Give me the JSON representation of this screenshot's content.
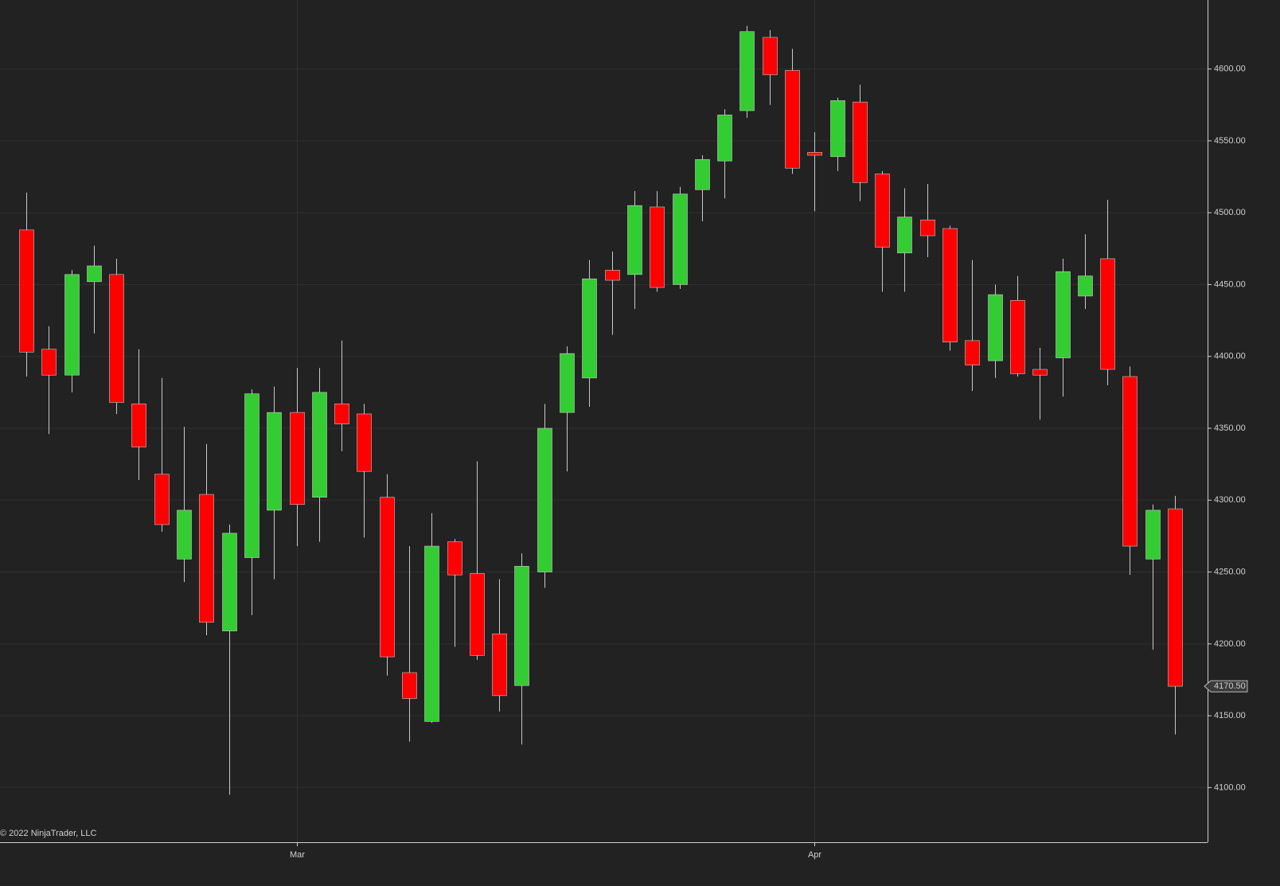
{
  "chart_data": {
    "type": "candlestick",
    "watermark": "© 2022 NinjaTrader, LLC",
    "categories": [
      null,
      null,
      null,
      null,
      null,
      null,
      null,
      null,
      null,
      null,
      null,
      null,
      "Mar",
      null,
      null,
      null,
      null,
      null,
      null,
      null,
      null,
      null,
      null,
      null,
      null,
      null,
      null,
      null,
      null,
      null,
      null,
      null,
      null,
      null,
      null,
      "Apr",
      null,
      null,
      null,
      null,
      null,
      null,
      null,
      null,
      null,
      null,
      null,
      null,
      null,
      null,
      null,
      null
    ],
    "open": [
      4488,
      4405,
      4387,
      4452,
      4457,
      4367,
      4318,
      4259,
      4304,
      4209,
      4260,
      4293,
      4361,
      4302,
      4367,
      4360,
      4302,
      4180,
      4146,
      4271,
      4249,
      4207,
      4171,
      4250,
      4361,
      4385,
      4460,
      4457,
      4504,
      4450,
      4516,
      4536,
      4571,
      4622,
      4599,
      4542,
      4539,
      4577,
      4527,
      4472,
      4495,
      4489,
      4411,
      4397,
      4439,
      4391,
      4399,
      4442,
      4468,
      4386,
      4259,
      4294
    ],
    "high": [
      4514,
      4421,
      4460,
      4477,
      4468,
      4405,
      4385,
      4351,
      4339,
      4283,
      4377,
      4379,
      4392,
      4392,
      4411,
      4367,
      4318,
      4268,
      4291,
      4273,
      4327,
      4245,
      4263,
      4367,
      4407,
      4467,
      4473,
      4515,
      4515,
      4518,
      4540,
      4572,
      4630,
      4627,
      4614,
      4556,
      4580,
      4589,
      4529,
      4517,
      4520,
      4491,
      4467,
      4450,
      4456,
      4406,
      4468,
      4485,
      4509,
      4393,
      4297,
      4303
    ],
    "low": [
      4386,
      4346,
      4375,
      4416,
      4360,
      4314,
      4278,
      4243,
      4206,
      4095,
      4220,
      4245,
      4268,
      4271,
      4334,
      4274,
      4178,
      4132,
      4145,
      4198,
      4189,
      4153,
      4130,
      4239,
      4320,
      4365,
      4415,
      4433,
      4445,
      4447,
      4494,
      4510,
      4566,
      4575,
      4527,
      4501,
      4529,
      4508,
      4445,
      4445,
      4469,
      4404,
      4376,
      4385,
      4386,
      4356,
      4372,
      4433,
      4380,
      4248,
      4196,
      4137
    ],
    "close": [
      4403,
      4387,
      4457,
      4463,
      4368,
      4337,
      4283,
      4293,
      4215,
      4277,
      4374,
      4361,
      4297,
      4375,
      4353,
      4320,
      4191,
      4162,
      4268,
      4248,
      4192,
      4164,
      4254,
      4350,
      4402,
      4454,
      4453,
      4505,
      4448,
      4513,
      4537,
      4568,
      4626,
      4596,
      4531,
      4540,
      4578,
      4521,
      4476,
      4497,
      4484,
      4410,
      4394,
      4443,
      4388,
      4387,
      4459,
      4456,
      4391,
      4268,
      4293,
      4170.5
    ],
    "up_color": "#33cc33",
    "down_color": "#ff0000",
    "last_price": {
      "value": 4170.5,
      "label": "4170.50"
    },
    "ylim": [
      4062,
      4648
    ],
    "yticks": [
      {
        "value": 4100,
        "label": "4100.00"
      },
      {
        "value": 4150,
        "label": "4150.00"
      },
      {
        "value": 4200,
        "label": "4200.00"
      },
      {
        "value": 4250,
        "label": "4250.00"
      },
      {
        "value": 4300,
        "label": "4300.00"
      },
      {
        "value": 4350,
        "label": "4350.00"
      },
      {
        "value": 4400,
        "label": "4400.00"
      },
      {
        "value": 4450,
        "label": "4450.00"
      },
      {
        "value": 4500,
        "label": "4500.00"
      },
      {
        "value": 4550,
        "label": "4550.00"
      },
      {
        "value": 4600,
        "label": "4600.00"
      }
    ],
    "grid": true
  }
}
